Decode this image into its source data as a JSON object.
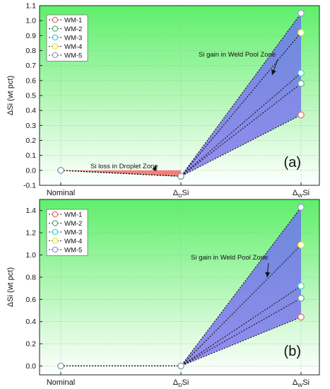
{
  "chart_data": [
    {
      "type": "line",
      "panel_label": "(a)",
      "ylabel": "ΔSi (wt pct)",
      "categories": [
        "Nominal",
        "ΔDSi",
        "ΔWSi"
      ],
      "tick_labels": [
        {
          "main": "Nominal",
          "sub": "",
          "tail": ""
        },
        {
          "main": "Δ",
          "sub": "D",
          "tail": "Si"
        },
        {
          "main": "Δ",
          "sub": "W",
          "tail": "Si"
        }
      ],
      "ylim": [
        -0.1,
        1.1
      ],
      "yticks": [
        -0.1,
        0.0,
        0.1,
        0.2,
        0.3,
        0.4,
        0.5,
        0.6,
        0.7,
        0.8,
        0.9,
        1.0,
        1.1
      ],
      "grid": true,
      "legend_position": "top-left",
      "series": [
        {
          "name": "WM-1",
          "color": "#e8736e",
          "values": [
            0.0,
            -0.04,
            0.37
          ]
        },
        {
          "name": "WM-2",
          "color": "#5fae8e",
          "values": [
            0.0,
            -0.04,
            0.58
          ]
        },
        {
          "name": "WM-3",
          "color": "#3fd8d8",
          "values": [
            0.0,
            -0.04,
            0.65
          ]
        },
        {
          "name": "WM-4",
          "color": "#e8e830",
          "values": [
            0.0,
            -0.04,
            0.92
          ]
        },
        {
          "name": "WM-5",
          "color": "#8fa3cf",
          "values": [
            0.0,
            -0.04,
            1.05
          ]
        }
      ],
      "annotations": [
        {
          "text": "Si gain in Weld Pool Zone"
        },
        {
          "text": "Si loss in Droplet Zone"
        }
      ]
    },
    {
      "type": "line",
      "panel_label": "(b)",
      "ylabel": "ΔSi (wt pct)",
      "categories": [
        "Nominal",
        "ΔDSi",
        "ΔWSi"
      ],
      "tick_labels": [
        {
          "main": "Nominal",
          "sub": "",
          "tail": ""
        },
        {
          "main": "Δ",
          "sub": "D",
          "tail": "Si"
        },
        {
          "main": "Δ",
          "sub": "W",
          "tail": "Si"
        }
      ],
      "ylim": [
        -0.08,
        1.5
      ],
      "yticks": [
        0.0,
        0.2,
        0.4,
        0.6,
        0.8,
        1.0,
        1.2,
        1.4
      ],
      "grid": true,
      "legend_position": "top-left",
      "series": [
        {
          "name": "WM-1",
          "color": "#e8736e",
          "values": [
            0.0,
            0.0,
            0.44
          ]
        },
        {
          "name": "WM-2",
          "color": "#5fae8e",
          "values": [
            0.0,
            0.0,
            0.61
          ]
        },
        {
          "name": "WM-3",
          "color": "#3fd8d8",
          "values": [
            0.0,
            0.0,
            0.72
          ]
        },
        {
          "name": "WM-4",
          "color": "#e8e830",
          "values": [
            0.0,
            0.0,
            1.09
          ]
        },
        {
          "name": "WM-5",
          "color": "#8fa3cf",
          "values": [
            0.0,
            0.0,
            1.43
          ]
        }
      ],
      "annotations": [
        {
          "text": "Si gain in Weld Pool Zone"
        }
      ]
    }
  ]
}
